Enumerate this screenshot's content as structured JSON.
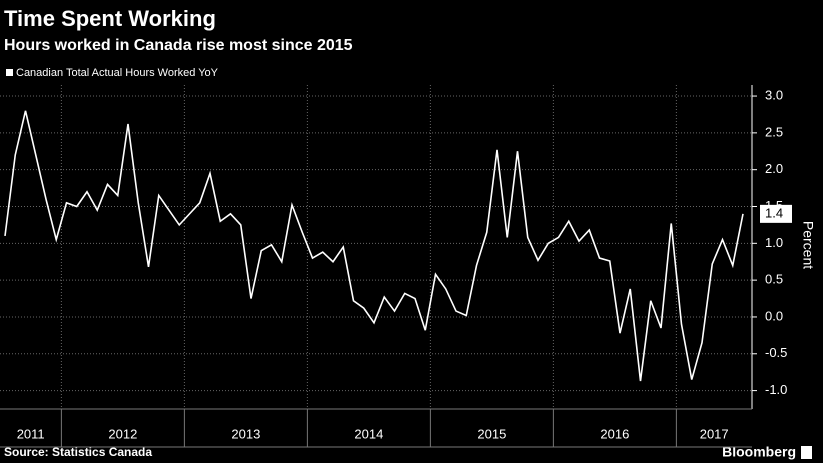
{
  "chart_data": {
    "type": "line",
    "title": "Time Spent Working",
    "subtitle": "Hours worked in Canada rise most since 2015",
    "legend": "Canadian Total Actual Hours Worked YoY",
    "y_label": "Percent",
    "source": "Source: Statistics  Canada",
    "brand": "Bloomberg",
    "year_labels": [
      "2011",
      "2012",
      "2013",
      "2014",
      "2015",
      "2016",
      "2017"
    ],
    "color": "#ffffff",
    "values": [
      1.1,
      2.2,
      2.8,
      2.2,
      1.6,
      1.05,
      1.55,
      1.5,
      1.7,
      1.45,
      1.8,
      1.65,
      2.62,
      1.55,
      0.68,
      1.65,
      1.45,
      1.25,
      1.4,
      1.55,
      1.95,
      1.3,
      1.4,
      1.25,
      0.25,
      0.9,
      0.98,
      0.75,
      1.52,
      1.15,
      0.8,
      0.88,
      0.75,
      0.95,
      0.22,
      0.12,
      -0.08,
      0.27,
      0.08,
      0.32,
      0.25,
      -0.18,
      0.58,
      0.38,
      0.08,
      0.02,
      0.7,
      1.15,
      2.27,
      1.08,
      2.25,
      1.08,
      0.77,
      1.0,
      1.08,
      1.3,
      1.03,
      1.18,
      0.8,
      0.76,
      -0.22,
      0.38,
      -0.87,
      0.22,
      -0.15,
      1.27,
      -0.1,
      -0.85,
      -0.35,
      0.72,
      1.05,
      0.7,
      1.4
    ],
    "ylim": [
      -1.25,
      3.15
    ],
    "yticks": [
      {
        "value": 3,
        "label": "3.0"
      },
      2.5,
      {
        "value": 2,
        "label": "2.0"
      },
      1.5,
      {
        "value": 1,
        "label": "1.0"
      },
      0.5,
      {
        "value": 0,
        "label": "0.0"
      },
      -0.5,
      {
        "value": -1,
        "label": "-1.0"
      }
    ],
    "grid": true
  }
}
